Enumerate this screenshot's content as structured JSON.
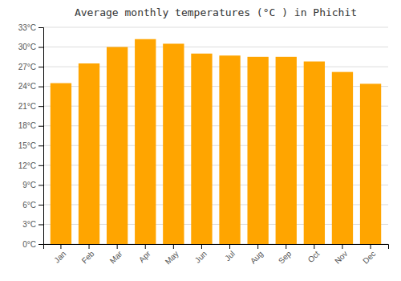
{
  "chart_data": {
    "type": "bar",
    "title": "Average monthly temperatures (°C ) in Phichit",
    "categories": [
      "Jan",
      "Feb",
      "Mar",
      "Apr",
      "May",
      "Jun",
      "Jul",
      "Aug",
      "Sep",
      "Oct",
      "Nov",
      "Dec"
    ],
    "values": [
      24.5,
      27.5,
      30.0,
      31.2,
      30.5,
      29.0,
      28.7,
      28.5,
      28.5,
      27.8,
      26.2,
      24.4
    ],
    "color": "#FFA500",
    "ylim": [
      0,
      33
    ],
    "yticks": [
      {
        "value": 0,
        "label": "0°C"
      },
      {
        "value": 3,
        "label": "3°C"
      },
      {
        "value": 6,
        "label": "6°C"
      },
      {
        "value": 9,
        "label": "9°C"
      },
      {
        "value": 12,
        "label": "12°C"
      },
      {
        "value": 15,
        "label": "15°C"
      },
      {
        "value": 18,
        "label": "18°C"
      },
      {
        "value": 21,
        "label": "21°C"
      },
      {
        "value": 24,
        "label": "24°C"
      },
      {
        "value": 27,
        "label": "27°C"
      },
      {
        "value": 30,
        "label": "30°C"
      },
      {
        "value": 33,
        "label": "33°C"
      }
    ],
    "grid": true
  }
}
